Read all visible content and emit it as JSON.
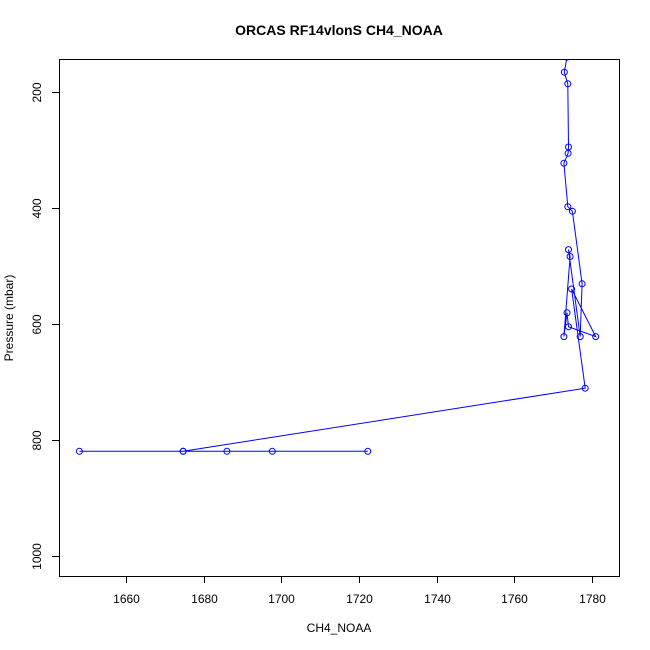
{
  "chart_data": {
    "type": "line",
    "title": "ORCAS RF14vlonS CH4_NOAA",
    "xlabel": "CH4_NOAA",
    "ylabel": "Pressure (mbar)",
    "xlim": [
      1643,
      1787
    ],
    "ylim": [
      1035,
      145
    ],
    "y_reversed": true,
    "x_ticks": [
      1660,
      1680,
      1700,
      1720,
      1740,
      1760,
      1780
    ],
    "y_ticks": [
      200,
      400,
      600,
      800,
      1000
    ],
    "grid": false,
    "legend": "none",
    "marker": "open-circle",
    "color": "#0000ff",
    "points": [
      {
        "x": 1722.3,
        "y": 820
      },
      {
        "x": 1697.7,
        "y": 820
      },
      {
        "x": 1686.0,
        "y": 820
      },
      {
        "x": 1674.7,
        "y": 820
      },
      {
        "x": 1648.0,
        "y": 820
      },
      {
        "x": 1674.7,
        "y": 820
      },
      {
        "x": 1778.3,
        "y": 711
      },
      {
        "x": 1774.8,
        "y": 540
      },
      {
        "x": 1781.0,
        "y": 622
      },
      {
        "x": 1774.0,
        "y": 605
      },
      {
        "x": 1773.6,
        "y": 581
      },
      {
        "x": 1772.8,
        "y": 622
      },
      {
        "x": 1774.4,
        "y": 484
      },
      {
        "x": 1774.0,
        "y": 472
      },
      {
        "x": 1777.0,
        "y": 622
      },
      {
        "x": 1777.5,
        "y": 531
      },
      {
        "x": 1775.0,
        "y": 406
      },
      {
        "x": 1773.8,
        "y": 398
      },
      {
        "x": 1772.8,
        "y": 323
      },
      {
        "x": 1773.9,
        "y": 306
      },
      {
        "x": 1774.0,
        "y": 295
      },
      {
        "x": 1773.8,
        "y": 186
      },
      {
        "x": 1772.9,
        "y": 166
      },
      {
        "x": 1773.6,
        "y": 140
      }
    ]
  }
}
